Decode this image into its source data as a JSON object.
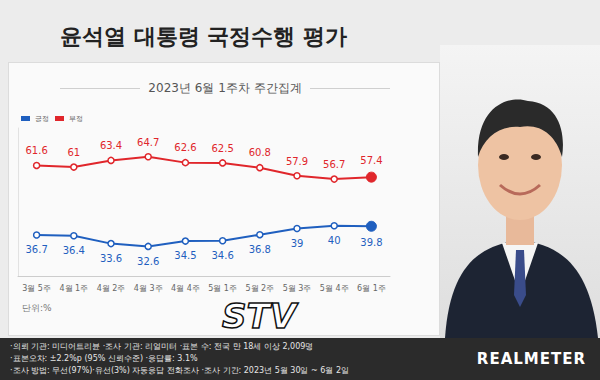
{
  "chart_data": {
    "type": "line",
    "title": "윤석열 대통령 국정수행 평가",
    "subtitle": "2023년 6월 1주차 주간집계",
    "annotations": [
      "단위:%"
    ],
    "categories": [
      "3월 5주",
      "4월 1주",
      "4월 2주",
      "4월 3주",
      "4월 4주",
      "5월 1주",
      "5월 2주",
      "5월 3주",
      "5월 4주",
      "6월 1주"
    ],
    "series": [
      {
        "name": "긍정",
        "color": "#1f5fbf",
        "values": [
          36.7,
          36.4,
          33.6,
          32.6,
          34.5,
          34.6,
          36.8,
          39.0,
          40.0,
          39.8
        ]
      },
      {
        "name": "부정",
        "color": "#e0262b",
        "values": [
          61.6,
          61.0,
          63.4,
          64.7,
          62.6,
          62.5,
          60.8,
          57.9,
          56.7,
          57.4
        ]
      }
    ],
    "ylim": [
      22,
      75
    ],
    "yticks": [],
    "tick_labels": "x",
    "grid": false,
    "legend": "upper left",
    "data_labels": true,
    "marker": "circle"
  },
  "footer": {
    "notes": [
      "·의뢰 기관: 미디어트리뷴  ·조사 기관: 리얼미터  ·표본 수: 전국 만 18세 이상 2,009명",
      "·표본오차: ±2.2%p (95% 신뢰수준)  ·응답률: 3.1%",
      "·조사 방법: 무선(97%)·유선(3%) 자동응답 전화조사  ·조사 기간: 2023년 5월 30일 ~ 6월 2일"
    ],
    "brand": "REALMETER"
  },
  "watermark": "STV"
}
